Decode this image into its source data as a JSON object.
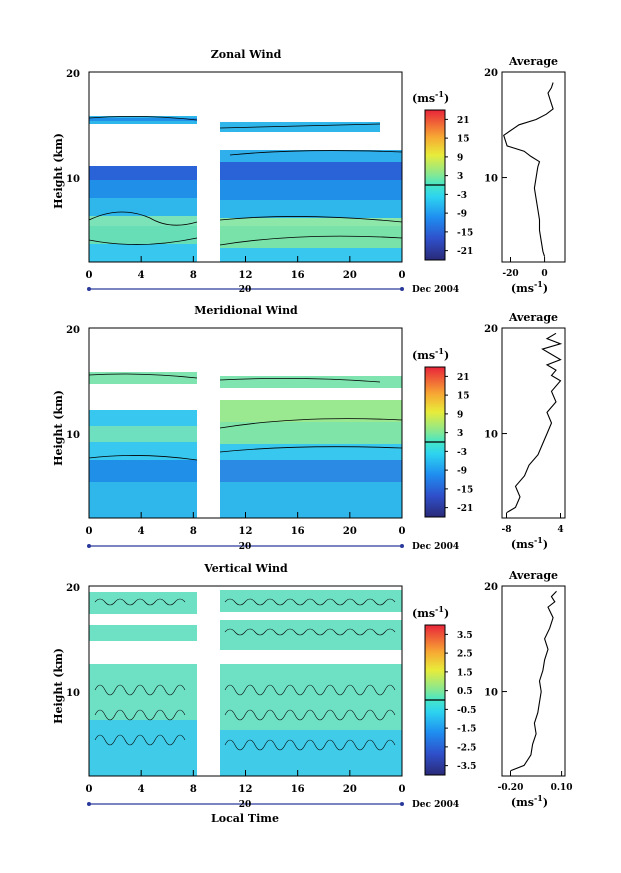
{
  "chart_data": [
    {
      "type": "heatmap",
      "title": "Zonal Wind",
      "ylabel": "Height (km)",
      "y_ticks": [
        "10",
        "20"
      ],
      "ylim": [
        2,
        20
      ],
      "x_ticks": [
        "0",
        "4",
        "8",
        "12",
        "16",
        "20",
        "0"
      ],
      "date_marker": "20",
      "date_label": "Dec 2004",
      "colorbar": {
        "unit_label": "(ms",
        "unit_exp": "-1",
        "unit_close": ")",
        "ticks": [
          "21",
          "15",
          "9",
          "3",
          "-3",
          "-9",
          "-15",
          "-21"
        ],
        "range": [
          -24,
          24
        ]
      },
      "profile": {
        "title": "Average",
        "xlabel": "(ms",
        "xlabel_exp": "-1",
        "xlabel_close": ")",
        "x_ticks": [
          "-20",
          "0"
        ],
        "xlim": [
          -25,
          12
        ],
        "y_ticks": [
          "10",
          "20"
        ],
        "heights": [
          2.5,
          3,
          4,
          5,
          6,
          7,
          8,
          9,
          10,
          11,
          11.5,
          12,
          12.5,
          13,
          14,
          15,
          15.5,
          16,
          16.5,
          17,
          17.5,
          18,
          18.5,
          19
        ],
        "values": [
          0,
          -1,
          -2,
          -3,
          -3,
          -4,
          -5,
          -6,
          -5,
          -4,
          -3,
          -8,
          -12,
          -22,
          -24,
          -15,
          -5,
          1,
          5,
          4,
          3,
          2,
          4,
          5
        ]
      }
    },
    {
      "type": "heatmap",
      "title": "Meridional Wind",
      "ylabel": "Height (km)",
      "y_ticks": [
        "10",
        "20"
      ],
      "ylim": [
        2,
        20
      ],
      "x_ticks": [
        "0",
        "4",
        "8",
        "12",
        "16",
        "20",
        "0"
      ],
      "date_marker": "20",
      "date_label": "Dec 2004",
      "colorbar": {
        "unit_label": "(ms",
        "unit_exp": "-1",
        "unit_close": ")",
        "ticks": [
          "21",
          "15",
          "9",
          "3",
          "-3",
          "-9",
          "-15",
          "-21"
        ],
        "range": [
          -24,
          24
        ]
      },
      "profile": {
        "title": "Average",
        "xlabel": "(ms",
        "xlabel_exp": "-1",
        "xlabel_close": ")",
        "x_ticks": [
          "-8",
          "4"
        ],
        "xlim": [
          -9,
          5
        ],
        "y_ticks": [
          "10",
          "20"
        ],
        "heights": [
          2.5,
          3,
          4,
          5,
          6,
          7,
          8,
          9,
          10,
          11,
          12,
          13,
          14,
          15,
          15.5,
          16,
          16.5,
          17,
          17.5,
          18,
          18.5,
          19,
          19.5
        ],
        "values": [
          -8,
          -6,
          -5,
          -6,
          -4,
          -3,
          -1,
          0,
          1,
          2,
          1,
          3,
          2,
          4,
          2,
          3,
          1,
          4,
          2,
          0,
          4,
          1,
          3
        ]
      }
    },
    {
      "type": "heatmap",
      "title": "Vertical Wind",
      "ylabel": "Height (km)",
      "xlabel": "Local Time",
      "y_ticks": [
        "10",
        "20"
      ],
      "ylim": [
        2,
        20
      ],
      "x_ticks": [
        "0",
        "4",
        "8",
        "12",
        "16",
        "20",
        "0"
      ],
      "date_marker": "20",
      "date_label": "Dec 2004",
      "colorbar": {
        "unit_label": "(ms",
        "unit_exp": "-1",
        "unit_close": ")",
        "ticks": [
          "3.5",
          "2.5",
          "1.5",
          "0.5",
          "-0.5",
          "-1.5",
          "-2.5",
          "-3.5"
        ],
        "range": [
          -4,
          4
        ]
      },
      "profile": {
        "title": "Average",
        "xlabel": "(ms",
        "xlabel_exp": "-1",
        "xlabel_close": ")",
        "x_ticks": [
          "-0.20",
          "0.10"
        ],
        "xlim": [
          -0.25,
          0.12
        ],
        "y_ticks": [
          "10",
          "20"
        ],
        "heights": [
          2.5,
          3,
          4,
          5,
          6,
          7,
          8,
          9,
          10,
          11,
          12,
          13,
          14,
          15,
          16,
          17,
          18,
          18.5,
          19,
          19.5
        ],
        "values": [
          -0.2,
          -0.12,
          -0.08,
          -0.07,
          -0.05,
          -0.06,
          -0.04,
          -0.03,
          -0.02,
          -0.03,
          -0.01,
          0.0,
          0.02,
          0.0,
          0.03,
          0.05,
          0.02,
          0.06,
          0.04,
          0.07
        ]
      }
    }
  ]
}
